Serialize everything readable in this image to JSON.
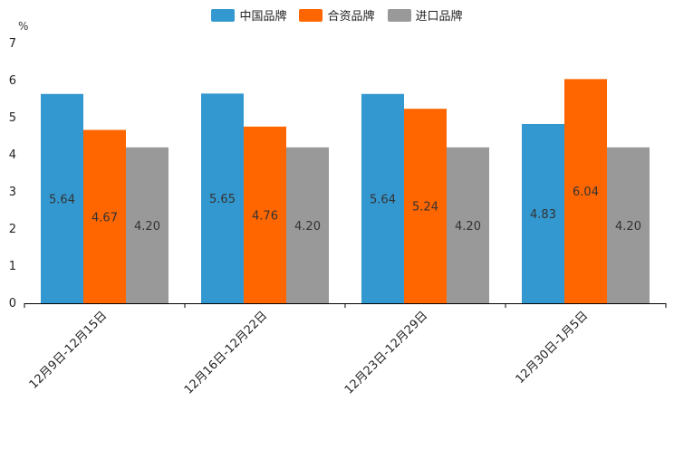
{
  "chart_data": {
    "type": "bar",
    "title": "",
    "ylabel": "%",
    "xlabel": "",
    "ylim": [
      0,
      7
    ],
    "yticks": [
      0,
      1,
      2,
      3,
      4,
      5,
      6,
      7
    ],
    "categories": [
      "12月9日-12月15日",
      "12月16日-12月22日",
      "12月23日-12月29日",
      "12月30日-1月5日"
    ],
    "series": [
      {
        "name": "中国品牌",
        "color": "#3498d0",
        "values": [
          5.64,
          5.65,
          5.64,
          4.83
        ],
        "labels": [
          "5.64",
          "5.65",
          "5.64",
          "4.83"
        ]
      },
      {
        "name": "合资品牌",
        "color": "#ff6600",
        "values": [
          4.67,
          4.76,
          5.24,
          6.04
        ],
        "labels": [
          "4.67",
          "4.76",
          "5.24",
          "6.04"
        ]
      },
      {
        "name": "进口品牌",
        "color": "#999999",
        "values": [
          4.2,
          4.2,
          4.2,
          4.2
        ],
        "labels": [
          "4.20",
          "4.20",
          "4.20",
          "4.20"
        ]
      }
    ],
    "legend": "top-center"
  }
}
